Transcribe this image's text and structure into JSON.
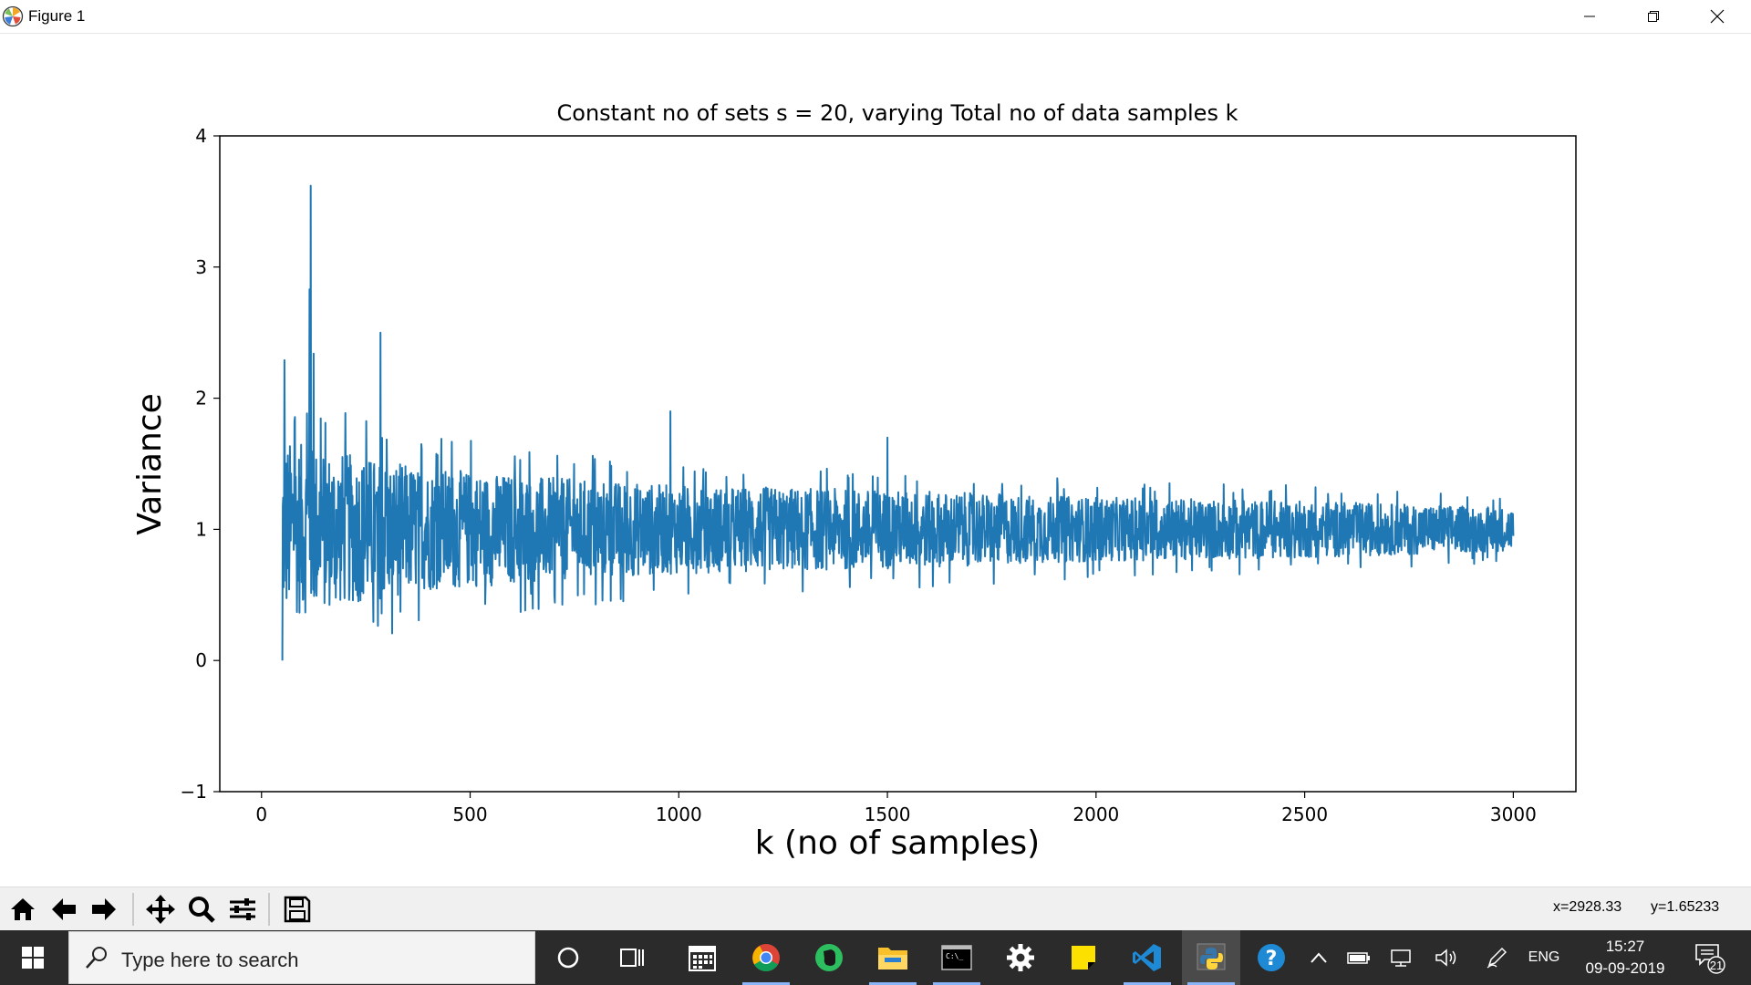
{
  "window": {
    "title": "Figure 1",
    "controls": [
      "minimize",
      "restore",
      "close"
    ]
  },
  "chart_data": {
    "type": "line",
    "title": "Constant no of sets s = 20, varying Total no of data samples k",
    "xlabel": "k (no of samples)",
    "ylabel": "Variance",
    "xlim": [
      -100,
      3150
    ],
    "ylim": [
      -1,
      4
    ],
    "xticks": [
      0,
      500,
      1000,
      1500,
      2000,
      2500,
      3000
    ],
    "xtick_labels": [
      "0",
      "500",
      "1000",
      "1500",
      "2000",
      "2500",
      "3000"
    ],
    "yticks": [
      -1,
      0,
      1,
      2,
      3,
      4
    ],
    "ytick_labels": [
      "−1",
      "0",
      "1",
      "2",
      "3",
      "4"
    ],
    "grid": false,
    "color": "#1f77b4",
    "x_start": 50,
    "x_end": 3000,
    "notable_points": [
      {
        "x": 50,
        "y": 0.0
      },
      {
        "x": 55,
        "y": 2.29
      },
      {
        "x": 115,
        "y": 2.83
      },
      {
        "x": 118,
        "y": 3.62
      },
      {
        "x": 125,
        "y": 2.34
      },
      {
        "x": 285,
        "y": 2.5
      },
      {
        "x": 980,
        "y": 1.9
      },
      {
        "x": 1500,
        "y": 1.7
      },
      {
        "x": 3000,
        "y": 0.95
      }
    ],
    "envelope": [
      {
        "x": 60,
        "upper": 1.9,
        "lower": 0.1
      },
      {
        "x": 200,
        "upper": 1.75,
        "lower": 0.2
      },
      {
        "x": 400,
        "upper": 1.6,
        "lower": 0.35
      },
      {
        "x": 700,
        "upper": 1.5,
        "lower": 0.45
      },
      {
        "x": 1000,
        "upper": 1.45,
        "lower": 0.55
      },
      {
        "x": 1500,
        "upper": 1.4,
        "lower": 0.6
      },
      {
        "x": 2000,
        "upper": 1.3,
        "lower": 0.65
      },
      {
        "x": 2500,
        "upper": 1.28,
        "lower": 0.7
      },
      {
        "x": 3000,
        "upper": 1.22,
        "lower": 0.78
      }
    ]
  },
  "toolbar": {
    "buttons": [
      "home-icon",
      "back-icon",
      "forward-icon",
      "pan-icon",
      "zoom-icon",
      "configure-subplots-icon",
      "save-icon"
    ],
    "x_readout": "x=2928.33",
    "y_readout": "y=1.65233"
  },
  "taskbar": {
    "search_placeholder": "Type here to search",
    "apps": [
      "cortana-icon",
      "task-view-icon",
      "calendar-icon",
      "chrome-icon",
      "evernote-icon",
      "file-explorer-icon",
      "terminal-icon",
      "settings-icon",
      "sticky-notes-icon",
      "vscode-icon",
      "python-icon",
      "help-icon"
    ],
    "language": "ENG",
    "time": "15:27",
    "date": "09-09-2019",
    "notification_count": "21"
  }
}
